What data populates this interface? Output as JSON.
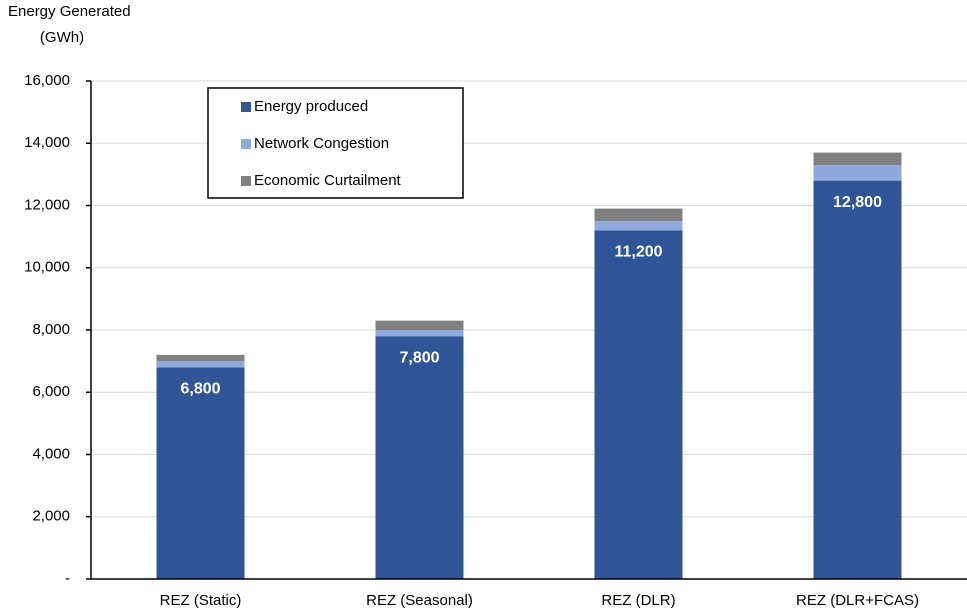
{
  "chart_data": {
    "type": "stacked_bar",
    "y_label": [
      "Energy Generated",
      "(GWh)"
    ],
    "categories": [
      "REZ (Static)",
      "REZ (Seasonal)",
      "REZ (DLR)",
      "REZ (DLR+FCAS)"
    ],
    "series": [
      {
        "name": "Energy produced",
        "color": "#2f5597",
        "values": [
          6800,
          7800,
          11200,
          12800
        ],
        "value_labels": [
          "6,800",
          "7,800",
          "11,200",
          "12,800"
        ]
      },
      {
        "name": "Network Congestion",
        "color": "#8faadc",
        "values": [
          200,
          200,
          300,
          500
        ]
      },
      {
        "name": "Economic Curtailment",
        "color": "#808080",
        "values": [
          200,
          300,
          400,
          400
        ]
      }
    ],
    "ylim": [
      0,
      16000
    ],
    "yticks": [
      {
        "value": 0,
        "label": "-"
      },
      {
        "value": 2000,
        "label": "2,000"
      },
      {
        "value": 4000,
        "label": "4,000"
      },
      {
        "value": 6000,
        "label": "6,000"
      },
      {
        "value": 8000,
        "label": "8,000"
      },
      {
        "value": 10000,
        "label": "10,000"
      },
      {
        "value": 12000,
        "label": "12,000"
      },
      {
        "value": 14000,
        "label": "14,000"
      },
      {
        "value": 16000,
        "label": "16,000"
      }
    ],
    "grid": true,
    "legend": "upper-left"
  }
}
